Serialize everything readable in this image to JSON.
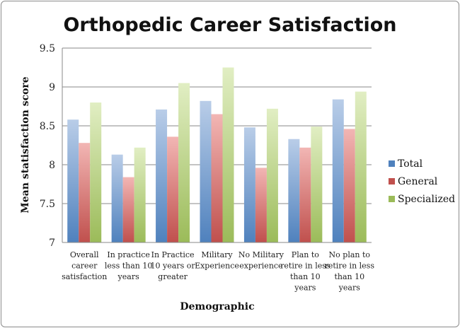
{
  "chart_data": {
    "type": "bar",
    "title": "Orthopedic Career Satisfaction",
    "xlabel": "Demographic",
    "ylabel": "Mean statisfaction score",
    "ylim": [
      7,
      9.5
    ],
    "yticks": [
      "7",
      "7.5",
      "8",
      "8.5",
      "9",
      "9.5"
    ],
    "grid": true,
    "legend_position": "right",
    "categories": [
      [
        "Overall",
        "career",
        "satisfaction"
      ],
      [
        "In practice",
        "less than 10",
        "years"
      ],
      [
        "In Practice",
        "10 years or",
        "greater"
      ],
      [
        "Military",
        "Experience"
      ],
      [
        "No Military",
        "experience"
      ],
      [
        "Plan to",
        "retire in less",
        "than 10",
        "years"
      ],
      [
        "No plan to",
        "retire in less",
        "than 10",
        "years"
      ]
    ],
    "series": [
      {
        "name": "Total",
        "color": "#4f81bd",
        "values": [
          8.58,
          8.13,
          8.71,
          8.82,
          8.48,
          8.33,
          8.84
        ]
      },
      {
        "name": "General",
        "color": "#c0504d",
        "values": [
          8.28,
          7.84,
          8.36,
          8.65,
          7.96,
          8.22,
          8.46
        ]
      },
      {
        "name": "Specialized",
        "color": "#9bbb59",
        "values": [
          8.8,
          8.22,
          9.05,
          9.25,
          8.72,
          8.49,
          8.94
        ]
      }
    ]
  }
}
